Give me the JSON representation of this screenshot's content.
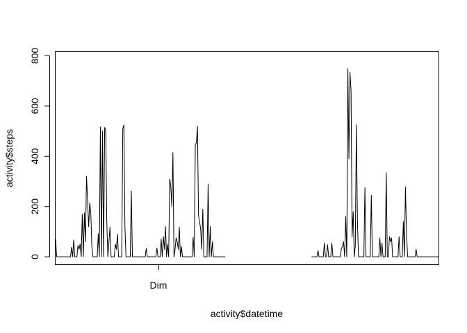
{
  "chart_data": {
    "type": "line",
    "title": "",
    "xlabel": "activity$datetime",
    "ylabel": "activity$steps",
    "x_ticks": [
      "Dim"
    ],
    "y_ticks": [
      0,
      200,
      400,
      600,
      800
    ],
    "ylim": [
      -30,
      815
    ],
    "grid": false,
    "legend": "none",
    "color": "#000000",
    "series": [
      {
        "values": [
          72,
          0,
          0,
          0,
          0,
          0,
          0,
          0,
          0,
          0,
          0,
          0,
          0,
          0,
          0,
          38,
          0,
          67,
          0,
          0,
          0,
          45,
          30,
          50,
          0,
          170,
          0,
          175,
          60,
          320,
          225,
          120,
          215,
          175,
          40,
          0,
          0,
          0,
          0,
          0,
          92,
          0,
          517,
          0,
          500,
          0,
          515,
          505,
          140,
          0,
          60,
          118,
          0,
          0,
          0,
          0,
          50,
          30,
          90,
          0,
          0,
          0,
          0,
          510,
          525,
          120,
          0,
          0,
          0,
          0,
          0,
          262,
          0,
          0,
          0,
          0,
          0,
          0,
          0,
          0,
          0,
          0,
          0,
          0,
          0,
          33,
          0,
          0,
          0,
          0,
          0,
          0,
          0,
          0,
          0,
          35,
          0,
          0,
          0,
          70,
          0,
          80,
          30,
          120,
          0,
          50,
          0,
          310,
          280,
          200,
          415,
          0,
          30,
          75,
          60,
          30,
          118,
          0,
          40,
          0,
          0,
          0,
          0,
          0,
          0,
          0,
          0,
          0,
          0,
          78,
          0,
          445,
          455,
          520,
          165,
          140,
          110,
          30,
          190,
          0,
          0,
          0,
          0,
          290,
          0,
          120,
          0,
          60,
          0,
          0,
          0,
          0,
          0,
          0,
          0,
          0,
          0,
          0,
          0,
          0,
          0,
          0,
          0,
          0,
          0,
          0,
          0,
          0,
          0,
          0,
          0,
          0,
          0,
          0,
          0,
          0,
          0,
          0,
          0,
          0,
          0,
          0,
          0,
          0,
          0,
          0,
          0,
          0,
          0,
          0,
          0,
          0,
          0,
          0,
          0,
          0,
          0,
          0,
          0,
          0,
          0,
          0,
          0,
          0,
          0,
          0,
          0,
          0,
          0,
          0,
          0,
          0,
          0,
          0,
          0,
          0,
          0,
          0,
          0,
          0,
          0,
          0,
          0,
          0,
          0,
          0,
          0,
          0,
          0,
          0,
          0,
          0,
          0,
          0,
          0,
          0,
          0,
          0,
          0,
          0,
          0,
          0,
          0,
          0,
          0,
          0,
          25,
          0,
          0,
          0,
          0,
          0,
          55,
          0,
          0,
          48,
          0,
          0,
          0,
          55,
          0,
          0,
          0,
          0,
          0,
          0,
          0,
          0,
          35,
          40,
          60,
          0,
          160,
          0,
          748,
          390,
          735,
          660,
          80,
          180,
          0,
          45,
          525,
          135,
          0,
          0,
          0,
          0,
          0,
          0,
          275,
          0,
          0,
          0,
          0,
          0,
          245,
          0,
          0,
          0,
          0,
          0,
          0,
          0,
          75,
          0,
          55,
          0,
          0,
          0,
          335,
          0,
          0,
          80,
          60,
          75,
          0,
          0,
          0,
          0,
          0,
          0,
          80,
          0,
          0,
          0,
          140,
          0,
          278,
          100,
          0,
          0,
          0,
          0,
          0,
          0,
          0,
          0,
          30,
          0,
          0,
          0,
          0,
          0,
          0,
          0,
          0,
          0,
          0,
          0,
          0,
          0,
          0,
          0,
          0,
          0,
          0,
          0,
          0,
          0
        ]
      }
    ]
  }
}
